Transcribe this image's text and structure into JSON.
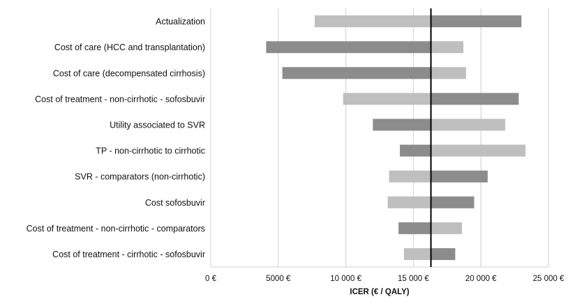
{
  "chart_data": {
    "type": "bar",
    "orientation": "horizontal",
    "subtype": "tornado",
    "title": "",
    "xlabel": "ICER (€ / QALY)",
    "ylabel": "",
    "xlim": [
      0,
      25000
    ],
    "baseline": 16300,
    "grid": true,
    "legend": "none",
    "x_ticks": [
      0,
      5000,
      10000,
      15000,
      20000,
      25000
    ],
    "x_tick_labels": [
      "0 €",
      "5000 €",
      "10 000 €",
      "15 000 €",
      "20 000 €",
      "25 000 €"
    ],
    "categories": [
      "Actualization",
      "Cost of care (HCC and transplantation)",
      "Cost of care (decompensated cirrhosis)",
      "Cost of treatment - non-cirrhotic - sofosbuvir",
      "Utility associated to SVR",
      "TP - non-cirrhotic to cirrhotic",
      "SVR - comparators (non-cirrhotic)",
      "Cost sofosbuvir",
      "Cost of treatment - non-cirrhotic - comparators",
      "Cost of treatment - cirrhotic - sofosbuvir"
    ],
    "low": [
      7700,
      4100,
      5300,
      9800,
      12000,
      14000,
      13200,
      13100,
      13900,
      14300
    ],
    "high": [
      23000,
      18700,
      18900,
      22800,
      21800,
      23300,
      20500,
      19500,
      18600,
      18100
    ],
    "low_side_dark": [
      false,
      true,
      true,
      false,
      true,
      true,
      false,
      false,
      true,
      false
    ],
    "high_side_dark": [
      true,
      false,
      false,
      true,
      false,
      false,
      true,
      true,
      false,
      true
    ],
    "colors": {
      "dark": "#8c8c8c",
      "light": "#bfbfbf",
      "baseline": "#000000",
      "grid": "#d0d0d0"
    }
  }
}
